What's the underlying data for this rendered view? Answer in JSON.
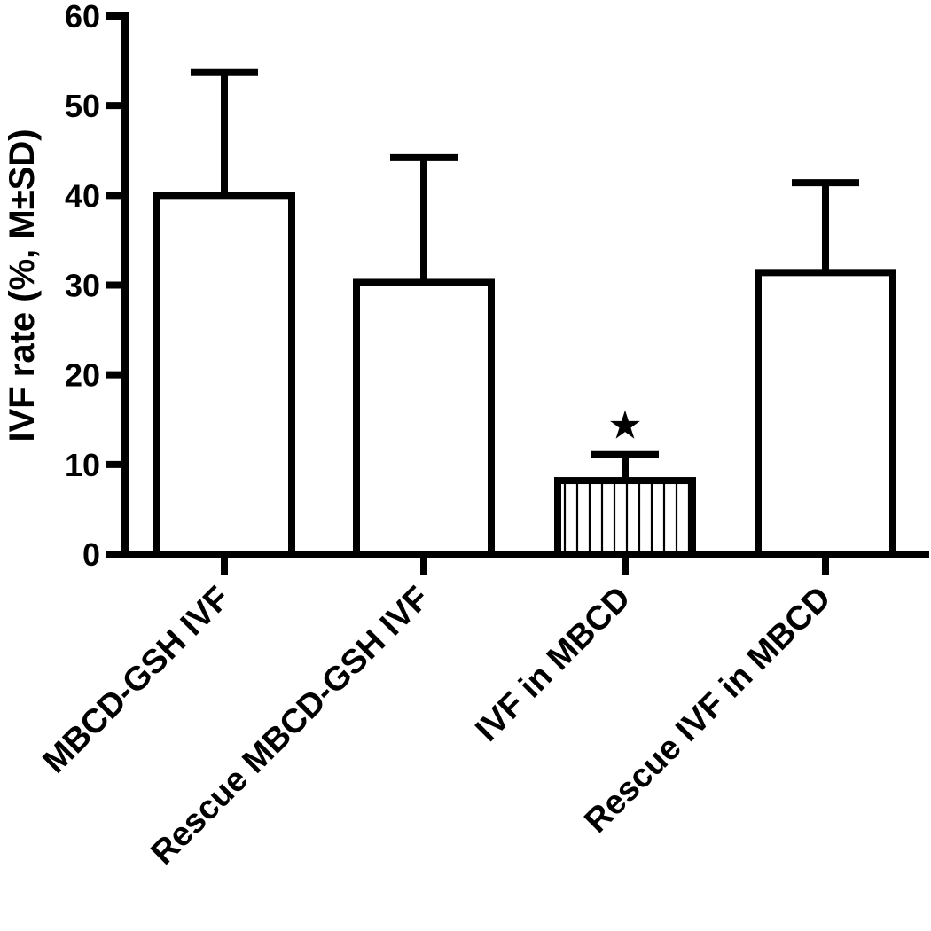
{
  "chart_data": {
    "type": "bar",
    "title": "",
    "xlabel": "",
    "ylabel": "IVF rate (%, M±SD)",
    "ylim": [
      0,
      60
    ],
    "yticks": [
      0,
      10,
      20,
      30,
      40,
      50,
      60
    ],
    "categories": [
      "MBCD-GSH IVF",
      "Rescue MBCD-GSH IVF",
      "IVF in MBCD",
      "Rescue IVF in MBCD"
    ],
    "values": [
      40,
      30.3,
      8.2,
      31.4
    ],
    "sd": [
      13.7,
      13.9,
      2.9,
      10
    ],
    "fills": [
      "none",
      "none",
      "vertical-stripes",
      "none"
    ],
    "annotations": [
      {
        "category": "IVF in MBCD",
        "symbol": "★",
        "meaning": "significance"
      }
    ],
    "grid": false,
    "legend": "none",
    "colors": {
      "stroke": "#000000",
      "fill": "#ffffff"
    }
  }
}
